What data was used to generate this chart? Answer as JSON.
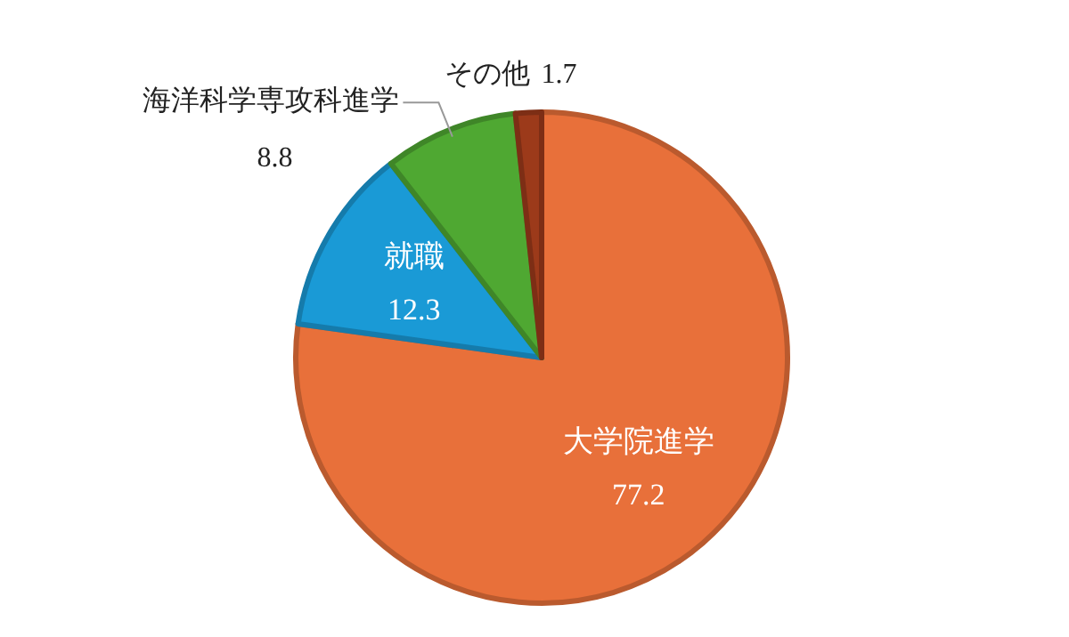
{
  "chart_data": {
    "type": "pie",
    "categories": [
      "大学院進学",
      "就職",
      "海洋科学専攻科進学",
      "その他"
    ],
    "values": [
      77.2,
      12.3,
      8.8,
      1.7
    ],
    "colors": [
      "#e8703a",
      "#1a9ad6",
      "#4fa832",
      "#9c3a1a"
    ],
    "data_labels": true
  }
}
